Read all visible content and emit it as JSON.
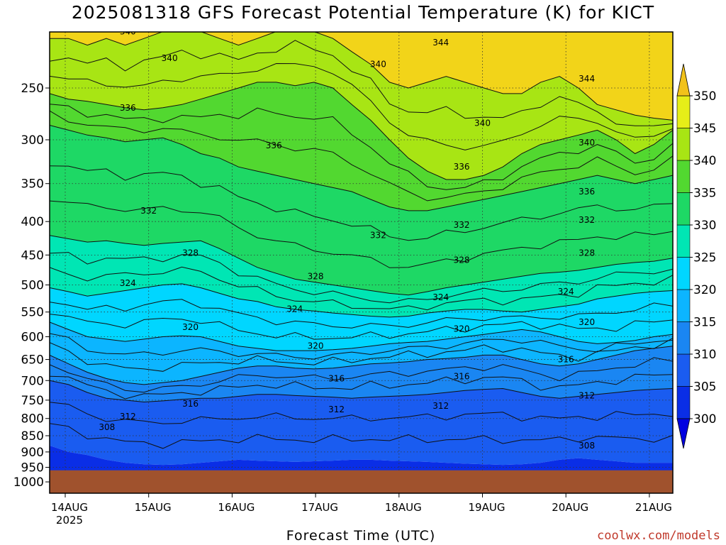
{
  "chart_data": {
    "type": "heatmap",
    "title": "2025081318 GFS Forecast Potential Temperature (K) for KICT",
    "xlabel": "Forecast Time (UTC)",
    "ylabel": "",
    "y_axis": {
      "scale": "pressure (hPa), inverted",
      "tick_labels": [
        "250",
        "300",
        "350",
        "400",
        "450",
        "500",
        "550",
        "600",
        "650",
        "700",
        "750",
        "800",
        "850",
        "900",
        "950",
        "1000"
      ],
      "range": [
        1000,
        200
      ]
    },
    "x_axis": {
      "tick_labels": [
        "14AUG",
        "15AUG",
        "16AUG",
        "17AUG",
        "18AUG",
        "19AUG",
        "20AUG",
        "21AUG"
      ],
      "sub_label": "2025"
    },
    "colorbar": {
      "levels": [
        300,
        305,
        310,
        315,
        320,
        325,
        330,
        335,
        340,
        345,
        350
      ],
      "tick_labels": [
        "300",
        "305",
        "310",
        "315",
        "320",
        "325",
        "330",
        "335",
        "340",
        "345",
        "350"
      ],
      "colors": [
        "#0000e0",
        "#0a33ee",
        "#1a62f0",
        "#1e8cf5",
        "#08b0ff",
        "#00d6ff",
        "#00eecf",
        "#16df68",
        "#28d23a",
        "#66dd1a",
        "#a6e612",
        "#e8ef14",
        "#f7c21a"
      ],
      "extend": "both"
    },
    "contour_labels": [
      {
        "label": "340",
        "approx_date": "14AUG 18Z",
        "pressure": 205
      },
      {
        "label": "340",
        "approx_date": "15AUG 06Z",
        "pressure": 225
      },
      {
        "label": "340",
        "approx_date": "17AUG 18Z",
        "pressure": 230
      },
      {
        "label": "344",
        "approx_date": "18AUG 12Z",
        "pressure": 213
      },
      {
        "label": "344",
        "approx_date": "20AUG 06Z",
        "pressure": 242
      },
      {
        "label": "336",
        "approx_date": "14AUG 18Z",
        "pressure": 268
      },
      {
        "label": "336",
        "approx_date": "16AUG 12Z",
        "pressure": 306
      },
      {
        "label": "340",
        "approx_date": "19AUG 00Z",
        "pressure": 283
      },
      {
        "label": "340",
        "approx_date": "20AUG 06Z",
        "pressure": 303
      },
      {
        "label": "336",
        "approx_date": "18AUG 18Z",
        "pressure": 330
      },
      {
        "label": "336",
        "approx_date": "20AUG 06Z",
        "pressure": 360
      },
      {
        "label": "332",
        "approx_date": "15AUG 00Z",
        "pressure": 385
      },
      {
        "label": "332",
        "approx_date": "17AUG 18Z",
        "pressure": 420
      },
      {
        "label": "332",
        "approx_date": "18AUG 18Z",
        "pressure": 405
      },
      {
        "label": "332",
        "approx_date": "20AUG 06Z",
        "pressure": 398
      },
      {
        "label": "328",
        "approx_date": "15AUG 12Z",
        "pressure": 447
      },
      {
        "label": "328",
        "approx_date": "17AUG 00Z",
        "pressure": 485
      },
      {
        "label": "328",
        "approx_date": "18AUG 18Z",
        "pressure": 458
      },
      {
        "label": "328",
        "approx_date": "20AUG 06Z",
        "pressure": 447
      },
      {
        "label": "324",
        "approx_date": "14AUG 18Z",
        "pressure": 497
      },
      {
        "label": "324",
        "approx_date": "16AUG 18Z",
        "pressure": 544
      },
      {
        "label": "324",
        "approx_date": "18AUG 12Z",
        "pressure": 522
      },
      {
        "label": "324",
        "approx_date": "20AUG 00Z",
        "pressure": 512
      },
      {
        "label": "320",
        "approx_date": "15AUG 12Z",
        "pressure": 580
      },
      {
        "label": "320",
        "approx_date": "17AUG 00Z",
        "pressure": 620
      },
      {
        "label": "320",
        "approx_date": "18AUG 18Z",
        "pressure": 584
      },
      {
        "label": "320",
        "approx_date": "20AUG 06Z",
        "pressure": 570
      },
      {
        "label": "316",
        "approx_date": "15AUG 12Z",
        "pressure": 760
      },
      {
        "label": "316",
        "approx_date": "17AUG 06Z",
        "pressure": 695
      },
      {
        "label": "316",
        "approx_date": "18AUG 18Z",
        "pressure": 690
      },
      {
        "label": "316",
        "approx_date": "20AUG 00Z",
        "pressure": 650
      },
      {
        "label": "312",
        "approx_date": "14AUG 18Z",
        "pressure": 795
      },
      {
        "label": "312",
        "approx_date": "17AUG 06Z",
        "pressure": 775
      },
      {
        "label": "312",
        "approx_date": "18AUG 12Z",
        "pressure": 765
      },
      {
        "label": "312",
        "approx_date": "20AUG 06Z",
        "pressure": 738
      },
      {
        "label": "308",
        "approx_date": "14AUG 12Z",
        "pressure": 825
      },
      {
        "label": "308",
        "approx_date": "20AUG 06Z",
        "pressure": 880
      }
    ],
    "boundary_levels_approx": [
      {
        "theta": 345,
        "pressure": [
          210,
          210,
          215,
          210,
          215,
          210,
          205,
          200,
          205,
          210,
          215,
          210,
          205,
          200,
          205,
          210,
          220,
          230,
          245,
          250,
          245,
          240,
          245,
          250,
          255,
          255,
          245,
          240,
          250,
          265,
          270,
          275,
          278,
          280
        ]
      },
      {
        "theta": 340,
        "pressure": [
          255,
          260,
          262,
          265,
          268,
          270,
          268,
          265,
          260,
          255,
          250,
          245,
          245,
          248,
          245,
          250,
          265,
          280,
          300,
          320,
          335,
          345,
          345,
          340,
          330,
          315,
          305,
          300,
          295,
          290,
          300,
          315,
          305,
          290
        ]
      },
      {
        "theta": 335,
        "pressure": [
          285,
          290,
          295,
          298,
          302,
          300,
          298,
          305,
          315,
          320,
          330,
          335,
          340,
          345,
          350,
          355,
          360,
          370,
          380,
          385,
          385,
          380,
          375,
          370,
          365,
          360,
          355,
          350,
          345,
          340,
          345,
          350,
          345,
          340
        ]
      },
      {
        "theta": 330,
        "pressure": [
          420,
          425,
          430,
          428,
          432,
          435,
          432,
          430,
          428,
          440,
          455,
          470,
          480,
          490,
          495,
          500,
          505,
          510,
          515,
          518,
          512,
          505,
          500,
          495,
          490,
          485,
          480,
          478,
          475,
          470,
          465,
          462,
          460,
          455
        ]
      },
      {
        "theta": 325,
        "pressure": [
          505,
          512,
          520,
          515,
          510,
          505,
          500,
          498,
          505,
          515,
          525,
          530,
          540,
          545,
          548,
          552,
          555,
          558,
          560,
          558,
          552,
          548,
          545,
          545,
          548,
          550,
          545,
          540,
          535,
          525,
          520,
          515,
          512,
          510
        ]
      },
      {
        "theta": 320,
        "pressure": [
          570,
          585,
          600,
          605,
          610,
          605,
          600,
          598,
          600,
          610,
          620,
          625,
          630,
          630,
          630,
          628,
          625,
          620,
          615,
          612,
          610,
          605,
          600,
          595,
          590,
          585,
          590,
          600,
          610,
          615,
          612,
          608,
          600,
          595
        ]
      },
      {
        "theta": 315,
        "pressure": [
          640,
          660,
          680,
          695,
          705,
          710,
          705,
          700,
          690,
          680,
          670,
          665,
          665,
          670,
          672,
          670,
          665,
          660,
          658,
          655,
          650,
          648,
          645,
          640,
          640,
          650,
          660,
          665,
          660,
          650,
          640,
          630,
          625,
          620
        ]
      },
      {
        "theta": 310,
        "pressure": [
          700,
          710,
          730,
          745,
          750,
          755,
          752,
          748,
          745,
          745,
          740,
          735,
          735,
          738,
          740,
          742,
          745,
          742,
          740,
          738,
          735,
          730,
          725,
          722,
          720,
          730,
          740,
          745,
          740,
          735,
          730,
          725,
          722,
          720
        ]
      },
      {
        "theta": 305,
        "pressure": [
          880,
          900,
          910,
          925,
          935,
          940,
          942,
          940,
          935,
          930,
          925,
          928,
          930,
          932,
          930,
          928,
          925,
          925,
          928,
          930,
          932,
          935,
          938,
          940,
          942,
          940,
          935,
          925,
          920,
          925,
          930,
          935,
          935,
          935
        ]
      }
    ],
    "surface_pressure": 960
  }
}
